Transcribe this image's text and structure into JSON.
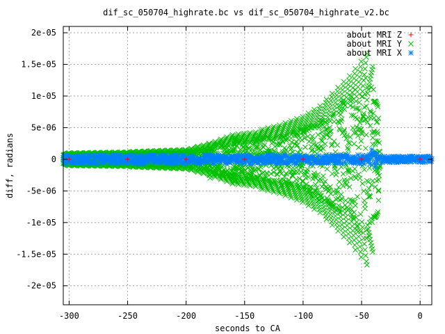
{
  "chart_data": {
    "type": "scatter",
    "title": "dif_sc_050704_highrate.bc vs dif_sc_050704_highrate_v2.bc",
    "xlabel": "seconds to CA",
    "ylabel": "diff, radians",
    "xlim": [
      -305,
      10
    ],
    "ylim": [
      -2.3e-05,
      2.1e-05
    ],
    "x_ticks": [
      -300,
      -250,
      -200,
      -150,
      -100,
      -50,
      0
    ],
    "x_tick_labels": [
      "-300",
      "-250",
      "-200",
      "-150",
      "-100",
      "-50",
      "0"
    ],
    "y_ticks": [
      -2e-05,
      -1.5e-05,
      -1e-05,
      -5e-06,
      0,
      5e-06,
      1e-05,
      1.5e-05,
      2e-05
    ],
    "y_tick_labels": [
      "-2e-05",
      "-1.5e-05",
      "-1e-05",
      "-5e-06",
      "0",
      "5e-06",
      "1e-05",
      "1.5e-05",
      "2e-05"
    ],
    "grid": true,
    "legend_position": "top-right",
    "series": [
      {
        "name": "about MRI Z",
        "color": "#ff0000",
        "marker": "plus",
        "points": [
          [
            -300,
            0
          ],
          [
            -250,
            0
          ],
          [
            -200,
            0
          ],
          [
            -150,
            0
          ],
          [
            -100,
            0
          ],
          [
            -50,
            0
          ],
          [
            0,
            0
          ]
        ]
      },
      {
        "name": "about MRI Y",
        "color": "#00c000",
        "marker": "cross",
        "envelope": [
          [
            -305,
            1e-06
          ],
          [
            -250,
            1.2e-06
          ],
          [
            -200,
            1.6e-06
          ],
          [
            -180,
            2.5e-06
          ],
          [
            -160,
            4e-06
          ],
          [
            -140,
            4.5e-06
          ],
          [
            -120,
            5.5e-06
          ],
          [
            -100,
            7e-06
          ],
          [
            -80,
            9.5e-06
          ],
          [
            -70,
            1.15e-05
          ],
          [
            -60,
            1.35e-05
          ],
          [
            -50,
            1.6e-05
          ],
          [
            -46,
            1.75e-05
          ],
          [
            -40,
            1.5e-05
          ],
          [
            -36,
            9e-06
          ],
          [
            -34,
            0
          ]
        ],
        "branch_spacing_s": 5,
        "branch_extent_s": 60,
        "spikes": [
          {
            "x": -180,
            "amplitude": 3e-06
          },
          {
            "x": -158,
            "amplitude": 4.5e-06
          }
        ]
      },
      {
        "name": "about MRI X",
        "color": "#0080ff",
        "marker": "star",
        "baseline_band": 7e-07,
        "burst": {
          "x_start": -45,
          "x_end": -35,
          "amplitude": 1.6e-06
        },
        "tail_amplitude": 5e-07
      }
    ]
  }
}
